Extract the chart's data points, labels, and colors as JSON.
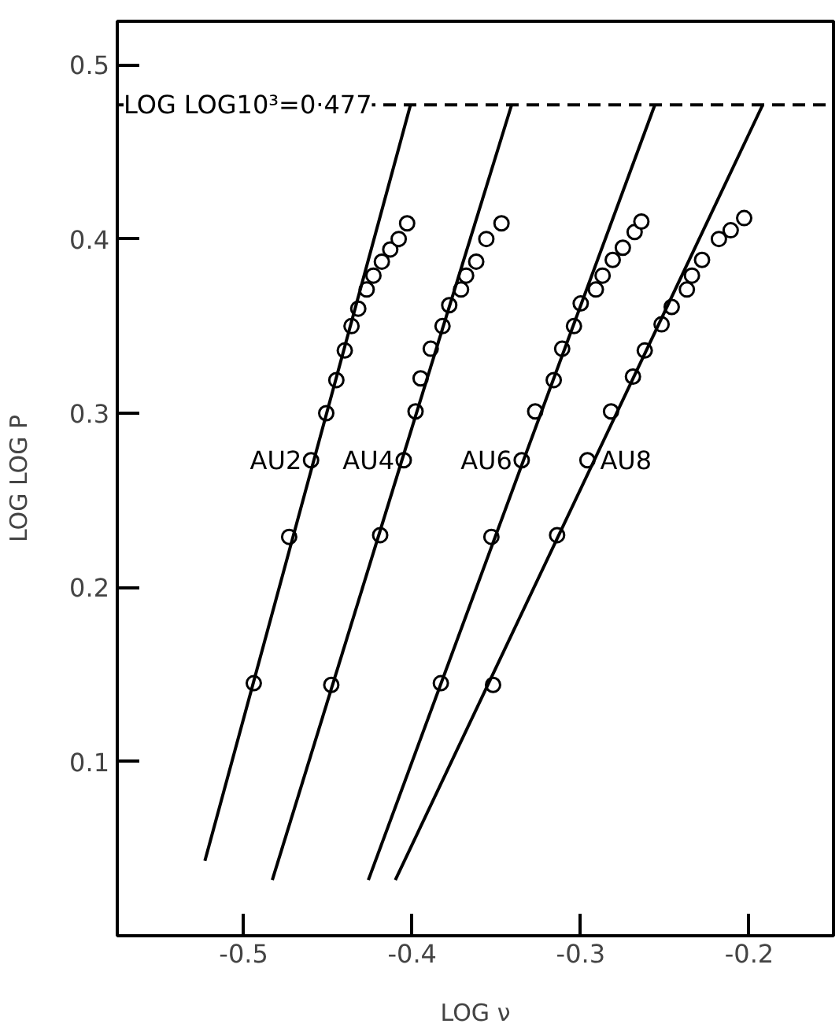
{
  "chart_data": {
    "type": "scatter",
    "xlabel": "LOG ν",
    "ylabel": "LOG LOG P",
    "xlim": [
      -0.575,
      -0.15
    ],
    "ylim": [
      0.0,
      0.525
    ],
    "xticks": [
      -0.5,
      -0.4,
      -0.3,
      -0.2
    ],
    "yticks": [
      0.1,
      0.2,
      0.3,
      0.4,
      0.5
    ],
    "marker": "circle",
    "ref_lines": [
      {
        "axis": "y",
        "value": 0.477,
        "label": "LOG LOG10³=0·477",
        "line_style": "dashed",
        "color": "#000000"
      }
    ],
    "series": [
      {
        "name": "AU2",
        "color": "#000000",
        "x": [
          -0.494,
          -0.473,
          -0.46,
          -0.451,
          -0.445,
          -0.44,
          -0.436,
          -0.432,
          -0.427,
          -0.423,
          -0.418,
          -0.413,
          -0.408,
          -0.403
        ],
        "values": [
          0.145,
          0.229,
          0.273,
          0.3,
          0.319,
          0.336,
          0.35,
          0.36,
          0.371,
          0.379,
          0.387,
          0.394,
          0.4,
          0.409
        ]
      },
      {
        "name": "AU4",
        "color": "#000000",
        "x": [
          -0.448,
          -0.419,
          -0.405,
          -0.398,
          -0.395,
          -0.389,
          -0.382,
          -0.378,
          -0.371,
          -0.368,
          -0.362,
          -0.356,
          -0.347
        ],
        "values": [
          0.144,
          0.23,
          0.273,
          0.301,
          0.32,
          0.337,
          0.35,
          0.362,
          0.371,
          0.379,
          0.387,
          0.4,
          0.409
        ]
      },
      {
        "name": "AU6",
        "color": "#000000",
        "x": [
          -0.383,
          -0.353,
          -0.335,
          -0.327,
          -0.316,
          -0.311,
          -0.304,
          -0.3,
          -0.291,
          -0.287,
          -0.281,
          -0.275,
          -0.268,
          -0.264
        ],
        "values": [
          0.145,
          0.229,
          0.273,
          0.301,
          0.319,
          0.337,
          0.35,
          0.363,
          0.371,
          0.379,
          0.388,
          0.395,
          0.404,
          0.41
        ]
      },
      {
        "name": "AU8",
        "color": "#000000",
        "x": [
          -0.352,
          -0.314,
          -0.296,
          -0.282,
          -0.269,
          -0.262,
          -0.252,
          -0.246,
          -0.237,
          -0.234,
          -0.228,
          -0.218,
          -0.211,
          -0.203
        ],
        "values": [
          0.144,
          0.23,
          0.273,
          0.301,
          0.321,
          0.336,
          0.351,
          0.361,
          0.371,
          0.379,
          0.388,
          0.4,
          0.405,
          0.412
        ]
      },
      {
        "type": "line",
        "marker": "none",
        "color": "#000000",
        "line_style": "solid",
        "x": [
          -0.523,
          -0.401
        ],
        "values": [
          0.043,
          0.477
        ]
      },
      {
        "type": "line",
        "marker": "none",
        "color": "#000000",
        "line_style": "solid",
        "x": [
          -0.483,
          -0.341
        ],
        "values": [
          0.032,
          0.477
        ]
      },
      {
        "type": "line",
        "marker": "none",
        "color": "#000000",
        "line_style": "solid",
        "x": [
          -0.426,
          -0.256
        ],
        "values": [
          0.032,
          0.477
        ]
      },
      {
        "type": "line",
        "marker": "none",
        "color": "#000000",
        "line_style": "solid",
        "x": [
          -0.41,
          -0.192
        ],
        "values": [
          0.032,
          0.477
        ]
      }
    ]
  }
}
